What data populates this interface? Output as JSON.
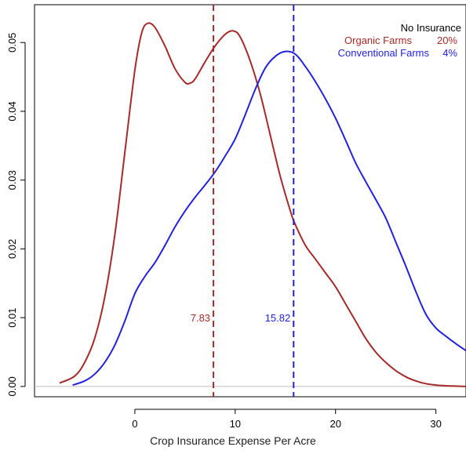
{
  "chart_data": {
    "type": "line",
    "title": "",
    "xlabel": "Crop Insurance Expense Per Acre",
    "ylabel": "",
    "xlim": [
      -10,
      33
    ],
    "ylim": [
      -0.0015,
      0.0555
    ],
    "xticks": [
      0,
      10,
      20,
      30
    ],
    "yticks": [
      0.0,
      0.01,
      0.02,
      0.03,
      0.04,
      0.05
    ],
    "ytick_labels": [
      "0.00",
      "0.01",
      "0.02",
      "0.03",
      "0.04",
      "0.05"
    ],
    "grid": false,
    "baseline_y": 0,
    "series": [
      {
        "name": "Organic Farms",
        "color": "#a52a2a",
        "mean": 7.83,
        "mean_label": "7.83",
        "no_insurance": "20%",
        "x": [
          -7.5,
          -6,
          -5,
          -4,
          -3,
          -2,
          -1,
          0,
          0.7,
          1.3,
          2,
          3,
          4,
          5,
          5.5,
          6,
          7,
          8,
          9,
          9.8,
          10.5,
          11.5,
          12.5,
          13.5,
          14.5,
          15.5,
          16,
          17,
          18,
          19,
          20,
          21,
          22,
          23,
          24,
          25,
          26,
          27,
          28,
          29,
          30,
          31,
          32,
          33
        ],
        "y": [
          0.0005,
          0.0015,
          0.0035,
          0.007,
          0.013,
          0.022,
          0.034,
          0.046,
          0.0515,
          0.0528,
          0.0522,
          0.0495,
          0.0462,
          0.0442,
          0.0441,
          0.0447,
          0.0472,
          0.0495,
          0.0512,
          0.0517,
          0.0508,
          0.0473,
          0.0425,
          0.0365,
          0.0305,
          0.0255,
          0.0235,
          0.0205,
          0.0185,
          0.0165,
          0.0145,
          0.012,
          0.0095,
          0.007,
          0.005,
          0.0035,
          0.0023,
          0.0014,
          0.0008,
          0.0004,
          0.0002,
          0.0001,
          5e-05,
          0.0
        ]
      },
      {
        "name": "Conventional Farms",
        "color": "#2222dd",
        "mean": 15.82,
        "mean_label": "15.82",
        "no_insurance": "4%",
        "x": [
          -6.2,
          -5,
          -4,
          -3,
          -2,
          -1,
          0,
          1,
          2,
          3,
          4,
          5,
          6,
          7,
          8,
          9,
          10,
          11,
          12,
          13,
          14,
          15,
          16,
          17,
          18,
          19,
          20,
          21,
          22,
          23,
          24,
          25,
          26,
          27,
          28,
          29,
          30,
          31,
          32,
          33
        ],
        "y": [
          0.0002,
          0.0008,
          0.0018,
          0.0035,
          0.006,
          0.0095,
          0.0135,
          0.016,
          0.018,
          0.0205,
          0.0232,
          0.0255,
          0.0275,
          0.0293,
          0.0312,
          0.0335,
          0.036,
          0.0395,
          0.0432,
          0.0463,
          0.048,
          0.0487,
          0.0483,
          0.0465,
          0.0443,
          0.0418,
          0.039,
          0.0358,
          0.0325,
          0.0298,
          0.0272,
          0.0245,
          0.021,
          0.0175,
          0.0138,
          0.0105,
          0.0085,
          0.0073,
          0.0062,
          0.0052
        ]
      }
    ],
    "annotation_title": "No Insurance"
  }
}
